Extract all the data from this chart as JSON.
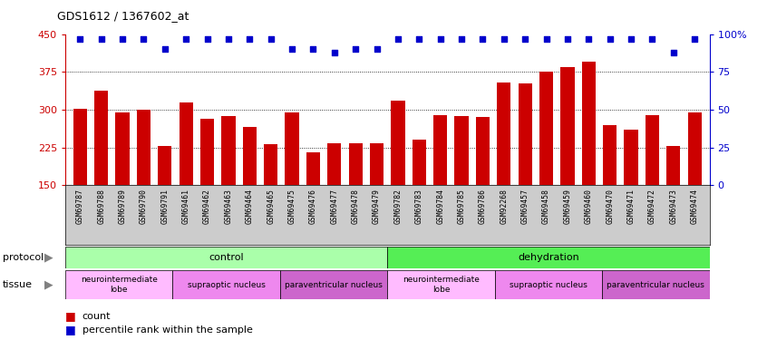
{
  "title": "GDS1612 / 1367602_at",
  "samples": [
    "GSM69787",
    "GSM69788",
    "GSM69789",
    "GSM69790",
    "GSM69791",
    "GSM69461",
    "GSM69462",
    "GSM69463",
    "GSM69464",
    "GSM69465",
    "GSM69475",
    "GSM69476",
    "GSM69477",
    "GSM69478",
    "GSM69479",
    "GSM69782",
    "GSM69783",
    "GSM69784",
    "GSM69785",
    "GSM69786",
    "GSM92268",
    "GSM69457",
    "GSM69458",
    "GSM69459",
    "GSM69460",
    "GSM69470",
    "GSM69471",
    "GSM69472",
    "GSM69473",
    "GSM69474"
  ],
  "counts": [
    302,
    338,
    295,
    300,
    228,
    315,
    282,
    287,
    265,
    232,
    295,
    215,
    234,
    234,
    233,
    318,
    240,
    290,
    287,
    285,
    353,
    352,
    375,
    385,
    395,
    270,
    260,
    290,
    228,
    295
  ],
  "percentile": [
    97,
    97,
    97,
    97,
    90,
    97,
    97,
    97,
    97,
    97,
    90,
    90,
    88,
    90,
    90,
    97,
    97,
    97,
    97,
    97,
    97,
    97,
    97,
    97,
    97,
    97,
    97,
    97,
    88,
    97
  ],
  "ylim": [
    150,
    450
  ],
  "yticks": [
    150,
    225,
    300,
    375,
    450
  ],
  "y2ticks": [
    0,
    25,
    50,
    75,
    100
  ],
  "bar_color": "#cc0000",
  "dot_color": "#0000cc",
  "gridline_y": [
    225,
    300,
    375
  ],
  "protocol_groups": [
    {
      "label": "control",
      "start": 0,
      "end": 14,
      "color": "#aaffaa"
    },
    {
      "label": "dehydration",
      "start": 15,
      "end": 29,
      "color": "#55ee55"
    }
  ],
  "tissue_groups": [
    {
      "label": "neurointermediate\nlobe",
      "start": 0,
      "end": 4,
      "color": "#ffbbff"
    },
    {
      "label": "supraoptic nucleus",
      "start": 5,
      "end": 9,
      "color": "#ee88ee"
    },
    {
      "label": "paraventricular nucleus",
      "start": 10,
      "end": 14,
      "color": "#dd66dd"
    },
    {
      "label": "neurointermediate\nlobe",
      "start": 15,
      "end": 19,
      "color": "#ffbbff"
    },
    {
      "label": "supraoptic nucleus",
      "start": 20,
      "end": 24,
      "color": "#ee88ee"
    },
    {
      "label": "paraventricular nucleus",
      "start": 25,
      "end": 29,
      "color": "#dd66dd"
    }
  ],
  "background_color": "#ffffff",
  "xtick_bg": "#cccccc"
}
